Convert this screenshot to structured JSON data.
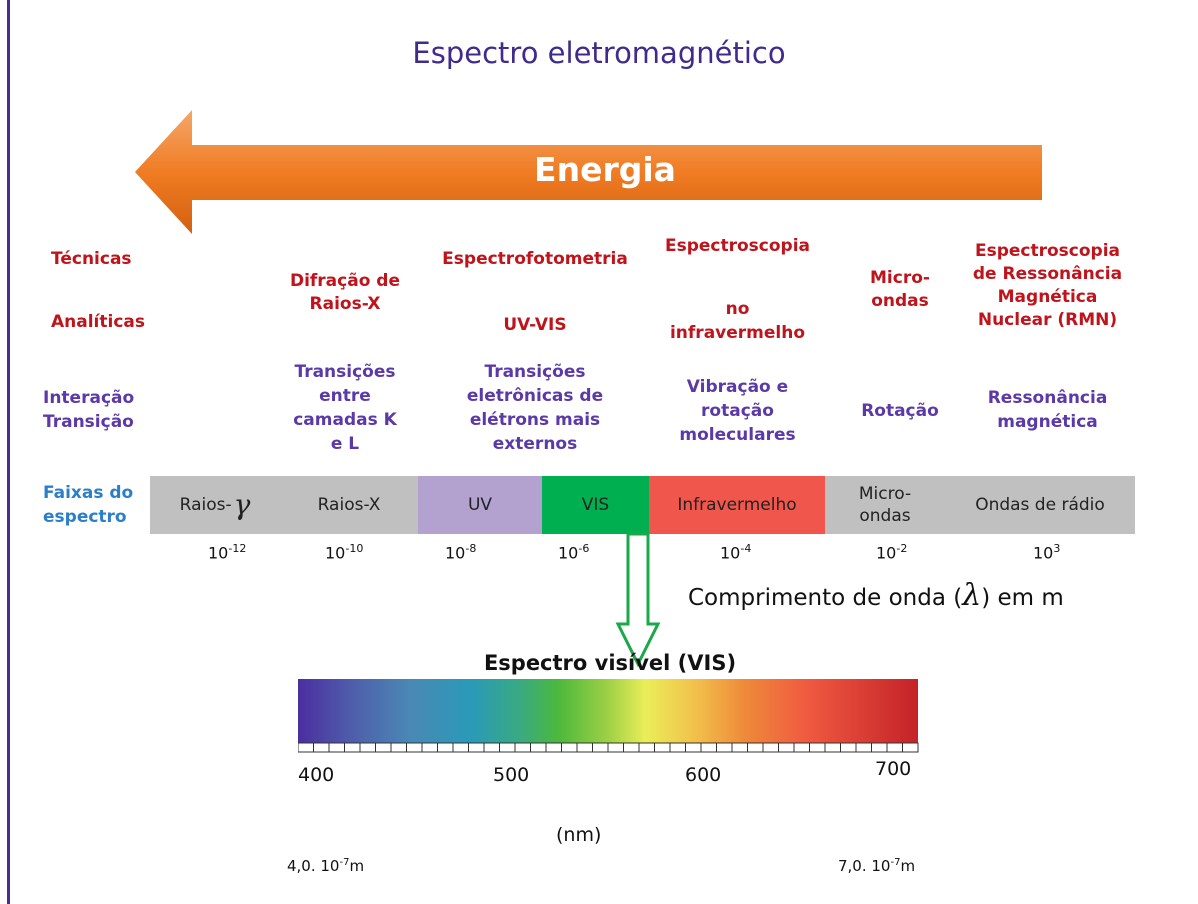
{
  "title": "Espectro eletromagnético",
  "arrow": {
    "label": "Energia",
    "color": "#f07c23"
  },
  "rows": {
    "tecnicas": "Técnicas",
    "analiticas": "Analíticas",
    "interacao": "Interação",
    "transicao": "Transição",
    "faixas": "Faixas do",
    "espectro": "espectro"
  },
  "techniques": {
    "difracao": "Difração de",
    "difracao2": "Raios-X",
    "espectrofotometria": "Espectrofotometria",
    "uvvis": "UV-VIS",
    "espectroscopia": "Espectroscopia",
    "no": "no",
    "infravermelho": "infravermelho",
    "micro": "Micro-",
    "ondas": "ondas",
    "rmn1": "Espectroscopia",
    "rmn2": "de Ressonância",
    "rmn3": "Magnética",
    "rmn4": "Nuclear (RMN)"
  },
  "interactions": {
    "xray1": "Transições",
    "xray2": "entre",
    "xray3": "camadas K",
    "xray4": "e L",
    "uv1": "Transições",
    "uv2": "eletrônicas de",
    "uv3": "elétrons mais",
    "uv4": "externos",
    "ir1": "Vibração e",
    "ir2": "rotação",
    "ir3": "moleculares",
    "mw": "Rotação",
    "radio1": "Ressonância",
    "radio2": "magnética"
  },
  "bands": {
    "gamma": "Raios-",
    "gamma_symbol": "γ",
    "xray": "Raios-X",
    "uv": "UV",
    "vis": "VIS",
    "ir": "Infravermelho",
    "mw1": "Micro-",
    "mw2": "ondas",
    "radio": "Ondas de rádio"
  },
  "band_colors": {
    "gray": "#c0c0c0",
    "uv": "#b3a2cf",
    "vis": "#00b050",
    "ir": "#f0564c"
  },
  "wavelength_ticks": [
    {
      "base": "10",
      "exp": "-12"
    },
    {
      "base": "10",
      "exp": "-10"
    },
    {
      "base": "10",
      "exp": "-8"
    },
    {
      "base": "10",
      "exp": "-6"
    },
    {
      "base": "10",
      "exp": "-4"
    },
    {
      "base": "10",
      "exp": "-2"
    },
    {
      "base": "10",
      "exp": "3"
    }
  ],
  "wavelength_label": {
    "prefix": "Comprimento de onda (",
    "symbol": "λ",
    "suffix": ") em m"
  },
  "visible": {
    "title": "Espectro visível (VIS)",
    "nm_ticks": [
      "400",
      "500",
      "600",
      "700"
    ],
    "unit": "(nm)",
    "min": {
      "text": "4,0. 10",
      "exp": "-7",
      "unit": "m"
    },
    "max": {
      "text": "7,0. 10",
      "exp": "-7",
      "unit": "m"
    }
  }
}
